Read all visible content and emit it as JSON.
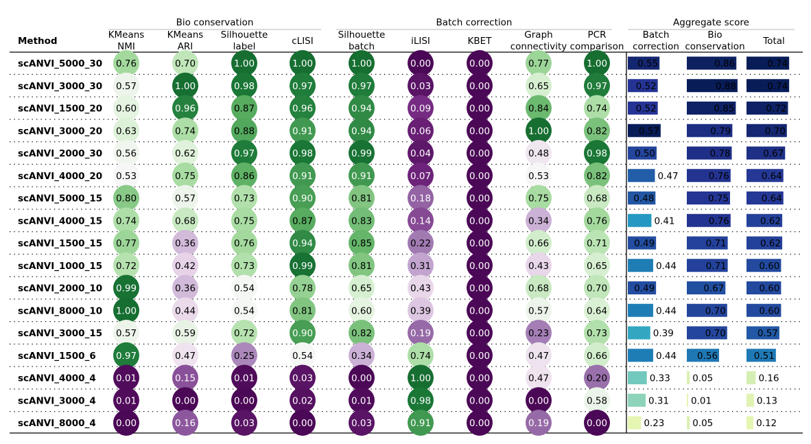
{
  "chart_data": {
    "type": "table",
    "group_headers": [
      "Bio conservation",
      "Batch correction",
      "Aggregate score"
    ],
    "method_header": "Method",
    "columns": [
      {
        "label": [
          "KMeans",
          "NMI"
        ],
        "group": 0,
        "kind": "circle"
      },
      {
        "label": [
          "KMeans",
          "ARI"
        ],
        "group": 0,
        "kind": "circle"
      },
      {
        "label": [
          "Silhouette",
          "label"
        ],
        "group": 0,
        "kind": "circle"
      },
      {
        "label": [
          "cLISI"
        ],
        "group": 0,
        "kind": "circle"
      },
      {
        "label": [
          "Silhouette",
          "batch"
        ],
        "group": 1,
        "kind": "circle"
      },
      {
        "label": [
          "iLISI"
        ],
        "group": 1,
        "kind": "circle"
      },
      {
        "label": [
          "KBET"
        ],
        "group": 1,
        "kind": "circle"
      },
      {
        "label": [
          "Graph",
          "connectivity"
        ],
        "group": 1,
        "kind": "circle"
      },
      {
        "label": [
          "PCR",
          "comparison"
        ],
        "group": 1,
        "kind": "circle"
      },
      {
        "label": [
          "Batch",
          "correction"
        ],
        "group": 2,
        "kind": "bar"
      },
      {
        "label": [
          "Bio",
          "conservation"
        ],
        "group": 2,
        "kind": "bar"
      },
      {
        "label": [
          "Total"
        ],
        "group": 2,
        "kind": "bar"
      }
    ],
    "rows": [
      {
        "method": "scANVI_5000_30",
        "values": [
          "0.76",
          "0.70",
          "1.00",
          "1.00",
          "1.00",
          "0.00",
          "0.00",
          "0.77",
          "1.00",
          "0.55",
          "0.86",
          "0.74"
        ]
      },
      {
        "method": "scANVI_3000_30",
        "values": [
          "0.57",
          "1.00",
          "0.98",
          "0.97",
          "0.97",
          "0.03",
          "0.00",
          "0.65",
          "0.97",
          "0.52",
          "0.88",
          "0.74"
        ]
      },
      {
        "method": "scANVI_1500_20",
        "values": [
          "0.60",
          "0.96",
          "0.87",
          "0.96",
          "0.94",
          "0.09",
          "0.00",
          "0.84",
          "0.74",
          "0.52",
          "0.85",
          "0.72"
        ]
      },
      {
        "method": "scANVI_3000_20",
        "values": [
          "0.63",
          "0.74",
          "0.88",
          "0.91",
          "0.94",
          "0.06",
          "0.00",
          "1.00",
          "0.82",
          "0.57",
          "0.79",
          "0.70"
        ]
      },
      {
        "method": "scANVI_2000_30",
        "values": [
          "0.56",
          "0.62",
          "0.97",
          "0.98",
          "0.99",
          "0.04",
          "0.00",
          "0.48",
          "0.98",
          "0.50",
          "0.78",
          "0.67"
        ]
      },
      {
        "method": "scANVI_4000_20",
        "values": [
          "0.53",
          "0.75",
          "0.86",
          "0.91",
          "0.91",
          "0.07",
          "0.00",
          "0.53",
          "0.82",
          "0.47",
          "0.76",
          "0.64"
        ]
      },
      {
        "method": "scANVI_5000_15",
        "values": [
          "0.80",
          "0.57",
          "0.73",
          "0.90",
          "0.81",
          "0.18",
          "0.00",
          "0.75",
          "0.68",
          "0.48",
          "0.75",
          "0.64"
        ]
      },
      {
        "method": "scANVI_4000_15",
        "values": [
          "0.74",
          "0.68",
          "0.75",
          "0.87",
          "0.83",
          "0.14",
          "0.00",
          "0.34",
          "0.76",
          "0.41",
          "0.76",
          "0.62"
        ]
      },
      {
        "method": "scANVI_1500_15",
        "values": [
          "0.77",
          "0.36",
          "0.76",
          "0.94",
          "0.85",
          "0.22",
          "0.00",
          "0.66",
          "0.71",
          "0.49",
          "0.71",
          "0.62"
        ]
      },
      {
        "method": "scANVI_1000_15",
        "values": [
          "0.72",
          "0.42",
          "0.73",
          "0.99",
          "0.81",
          "0.31",
          "0.00",
          "0.43",
          "0.65",
          "0.44",
          "0.71",
          "0.60"
        ]
      },
      {
        "method": "scANVI_2000_10",
        "values": [
          "0.99",
          "0.36",
          "0.54",
          "0.78",
          "0.65",
          "0.43",
          "0.00",
          "0.68",
          "0.70",
          "0.49",
          "0.67",
          "0.60"
        ]
      },
      {
        "method": "scANVI_8000_10",
        "values": [
          "1.00",
          "0.44",
          "0.54",
          "0.81",
          "0.60",
          "0.39",
          "0.00",
          "0.57",
          "0.64",
          "0.44",
          "0.70",
          "0.60"
        ]
      },
      {
        "method": "scANVI_3000_15",
        "values": [
          "0.57",
          "0.59",
          "0.72",
          "0.90",
          "0.82",
          "0.19",
          "0.00",
          "0.23",
          "0.73",
          "0.39",
          "0.70",
          "0.57"
        ]
      },
      {
        "method": "scANVI_1500_6",
        "values": [
          "0.97",
          "0.47",
          "0.25",
          "0.54",
          "0.34",
          "0.74",
          "0.00",
          "0.47",
          "0.66",
          "0.44",
          "0.56",
          "0.51"
        ]
      },
      {
        "method": "scANVI_4000_4",
        "values": [
          "0.01",
          "0.15",
          "0.01",
          "0.03",
          "0.00",
          "1.00",
          "0.00",
          "0.47",
          "0.20",
          "0.33",
          "0.05",
          "0.16"
        ]
      },
      {
        "method": "scANVI_3000_4",
        "values": [
          "0.01",
          "0.00",
          "0.00",
          "0.02",
          "0.01",
          "0.98",
          "0.00",
          "0.00",
          "0.58",
          "0.31",
          "0.01",
          "0.13"
        ]
      },
      {
        "method": "scANVI_8000_4",
        "values": [
          "0.00",
          "0.16",
          "0.03",
          "0.00",
          "0.03",
          "0.91",
          "0.00",
          "0.19",
          "0.00",
          "0.23",
          "0.05",
          "0.12"
        ]
      }
    ],
    "colormaps": {
      "circle": "PRGn",
      "bar_batch": "YlGnBu",
      "bar_bio": "YlGnBu",
      "bar_total": "YlGnBu"
    },
    "grid": "dotted row separators"
  }
}
